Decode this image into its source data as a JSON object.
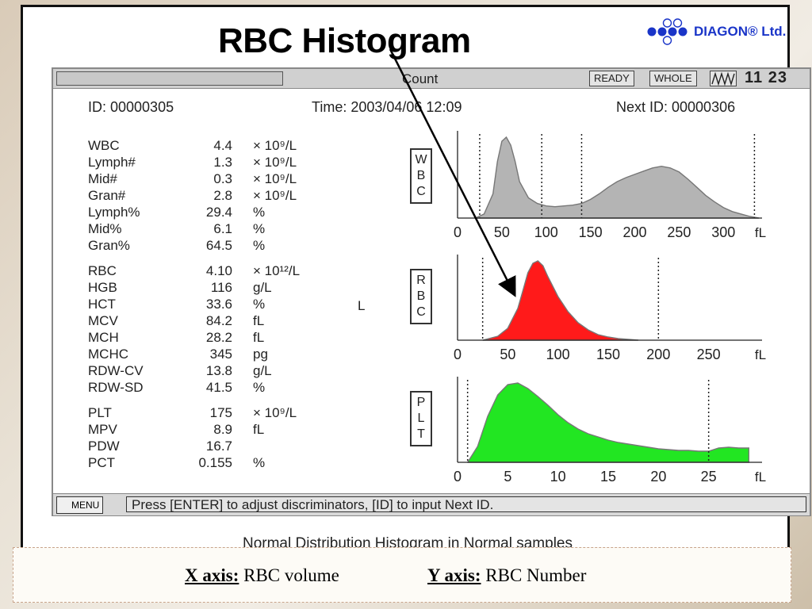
{
  "slide": {
    "title": "RBC Histogram",
    "brand": "DIAGON® Ltd.",
    "caption": "Normal Distribution Histogram in Normal samples"
  },
  "status": {
    "mode": "Count",
    "ready": "READY",
    "whole": "WHOLE",
    "time": "11 23"
  },
  "header": {
    "id": "ID: 00000305",
    "time": "Time: 2003/04/06   12:09",
    "next_id": "Next ID: 00000306"
  },
  "stray_text": "L",
  "params": [
    {
      "name": "WBC",
      "value": "4.4",
      "unit": "× 10⁹/L"
    },
    {
      "name": "Lymph#",
      "value": "1.3",
      "unit": "× 10⁹/L"
    },
    {
      "name": "Mid#",
      "value": "0.3",
      "unit": "× 10⁹/L"
    },
    {
      "name": "Gran#",
      "value": "2.8",
      "unit": "× 10⁹/L"
    },
    {
      "name": "Lymph%",
      "value": "29.4",
      "unit": "%"
    },
    {
      "name": "Mid%",
      "value": "6.1",
      "unit": "%"
    },
    {
      "name": "Gran%",
      "value": "64.5",
      "unit": "%"
    },
    {
      "name": "RBC",
      "value": "4.10",
      "unit": "× 10¹²/L"
    },
    {
      "name": "HGB",
      "value": "116",
      "unit": "g/L"
    },
    {
      "name": "HCT",
      "value": "33.6",
      "unit": "%"
    },
    {
      "name": "MCV",
      "value": "84.2",
      "unit": "fL"
    },
    {
      "name": "MCH",
      "value": "28.2",
      "unit": "fL"
    },
    {
      "name": "MCHC",
      "value": "345",
      "unit": "pg"
    },
    {
      "name": "RDW-CV",
      "value": "13.8",
      "unit": "g/L"
    },
    {
      "name": "RDW-SD",
      "value": "41.5",
      "unit": "%"
    },
    {
      "name": "PLT",
      "value": "175",
      "unit": "× 10⁹/L"
    },
    {
      "name": "MPV",
      "value": "8.9",
      "unit": "fL"
    },
    {
      "name": "PDW",
      "value": "16.7",
      "unit": ""
    },
    {
      "name": "PCT",
      "value": "0.155",
      "unit": "%"
    }
  ],
  "bottom": {
    "menu": "MENU",
    "prompt": "Press [ENTER] to adjust discriminators, [ID] to input Next ID."
  },
  "axis_box": {
    "x_key": "X axis:",
    "x_val": "RBC volume",
    "y_key": "Y axis:",
    "y_val": "RBC Number"
  },
  "chart_data": [
    {
      "type": "area",
      "label": "WBC",
      "unit_label": "fL",
      "color": "#b4b4b4",
      "xlim": [
        0,
        340
      ],
      "ticks": [
        "0",
        "50",
        "100",
        "150",
        "200",
        "250",
        "300"
      ],
      "tick_values": [
        0,
        50,
        100,
        150,
        200,
        250,
        300
      ],
      "discriminators": [
        25,
        95,
        140,
        335
      ],
      "x": [
        20,
        30,
        40,
        45,
        50,
        55,
        60,
        65,
        70,
        80,
        90,
        100,
        110,
        120,
        130,
        140,
        150,
        160,
        170,
        180,
        190,
        200,
        210,
        220,
        230,
        240,
        250,
        260,
        270,
        280,
        290,
        300,
        310,
        320,
        330,
        340
      ],
      "y": [
        0,
        0.05,
        0.3,
        0.7,
        0.95,
        1.0,
        0.9,
        0.7,
        0.45,
        0.25,
        0.18,
        0.15,
        0.14,
        0.15,
        0.16,
        0.18,
        0.23,
        0.3,
        0.38,
        0.45,
        0.5,
        0.54,
        0.58,
        0.62,
        0.64,
        0.62,
        0.57,
        0.48,
        0.38,
        0.28,
        0.2,
        0.13,
        0.08,
        0.05,
        0.02,
        0
      ]
    },
    {
      "type": "area",
      "label": "RBC",
      "unit_label": "fL",
      "color": "#ff1a1a",
      "xlim": [
        0,
        300
      ],
      "ticks": [
        "0",
        "50",
        "100",
        "150",
        "200",
        "250"
      ],
      "tick_values": [
        0,
        50,
        100,
        150,
        200,
        250
      ],
      "discriminators": [
        25,
        200
      ],
      "x": [
        25,
        40,
        50,
        60,
        65,
        70,
        75,
        80,
        85,
        90,
        100,
        110,
        120,
        130,
        140,
        150,
        160,
        170,
        180
      ],
      "y": [
        0,
        0.05,
        0.15,
        0.4,
        0.62,
        0.85,
        0.97,
        1.0,
        0.94,
        0.8,
        0.55,
        0.36,
        0.22,
        0.13,
        0.07,
        0.04,
        0.02,
        0.01,
        0
      ]
    },
    {
      "type": "area",
      "label": "PLT",
      "unit_label": "fL",
      "color": "#22e622",
      "xlim": [
        0,
        30
      ],
      "ticks": [
        "0",
        "5",
        "10",
        "15",
        "20",
        "25"
      ],
      "tick_values": [
        0,
        5,
        10,
        15,
        20,
        25
      ],
      "discriminators": [
        1,
        25
      ],
      "x": [
        1,
        2,
        3,
        4,
        5,
        6,
        7,
        8,
        9,
        10,
        11,
        12,
        13,
        14,
        15,
        16,
        17,
        18,
        19,
        20,
        21,
        22,
        23,
        24,
        25,
        26,
        27,
        28,
        29
      ],
      "y": [
        0,
        0.2,
        0.58,
        0.85,
        0.98,
        1.0,
        0.93,
        0.83,
        0.72,
        0.6,
        0.5,
        0.42,
        0.36,
        0.32,
        0.28,
        0.25,
        0.23,
        0.21,
        0.19,
        0.17,
        0.16,
        0.15,
        0.15,
        0.14,
        0.14,
        0.18,
        0.19,
        0.18,
        0.18
      ]
    }
  ]
}
